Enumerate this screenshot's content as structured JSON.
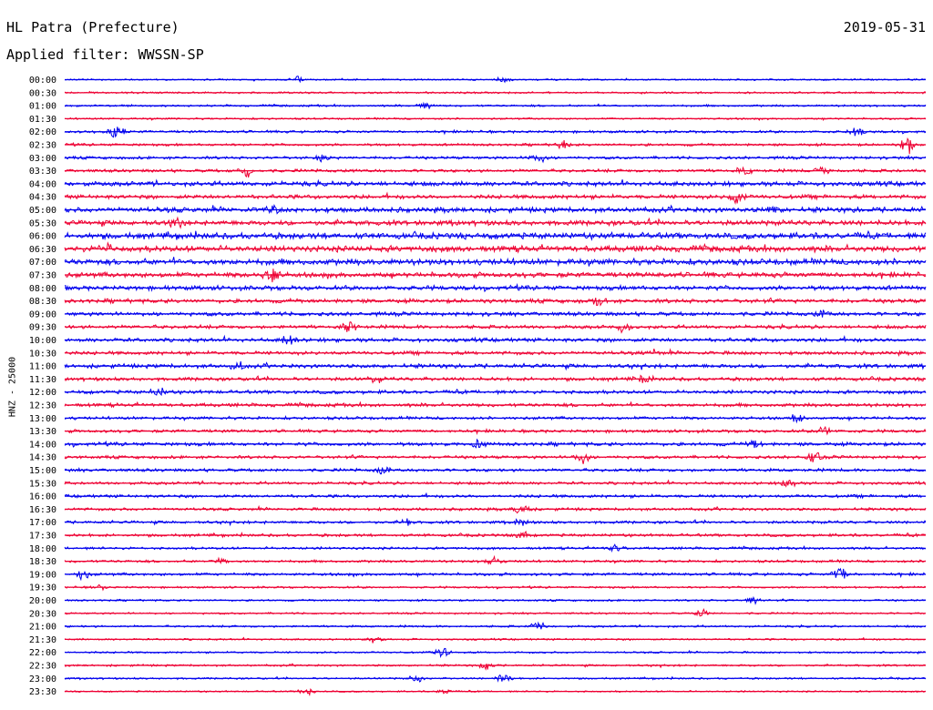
{
  "header": {
    "station": "HL Patra (Prefecture)",
    "filter": "Applied filter: WWSSN-SP",
    "date": "2019-05-31"
  },
  "chart_data": {
    "type": "line",
    "title": "HL Patra (Prefecture)",
    "subtitle": "Applied filter: WWSSN-SP",
    "date": "2019-05-31",
    "ylabel": "HNZ - 25000",
    "colors": [
      "#0000ee",
      "#ee0033"
    ],
    "rows": [
      {
        "label": "00:00",
        "amplitude": 0.15,
        "events": [
          [
            0.27,
            0.4
          ],
          [
            0.51,
            0.5
          ]
        ]
      },
      {
        "label": "00:30",
        "amplitude": 0.18,
        "events": []
      },
      {
        "label": "01:00",
        "amplitude": 0.2,
        "events": [
          [
            0.42,
            0.5
          ]
        ]
      },
      {
        "label": "01:30",
        "amplitude": 0.18,
        "events": []
      },
      {
        "label": "02:00",
        "amplitude": 0.25,
        "events": [
          [
            0.06,
            1.4
          ],
          [
            0.92,
            0.6
          ]
        ]
      },
      {
        "label": "02:30",
        "amplitude": 0.25,
        "events": [
          [
            0.98,
            1.3
          ],
          [
            0.58,
            0.6
          ]
        ]
      },
      {
        "label": "03:00",
        "amplitude": 0.28,
        "events": [
          [
            0.3,
            0.6
          ],
          [
            0.55,
            0.7
          ]
        ]
      },
      {
        "label": "03:30",
        "amplitude": 0.3,
        "events": [
          [
            0.21,
            0.7
          ],
          [
            0.79,
            0.6
          ],
          [
            0.88,
            0.6
          ]
        ]
      },
      {
        "label": "04:00",
        "amplitude": 0.45,
        "events": []
      },
      {
        "label": "04:30",
        "amplitude": 0.4,
        "events": [
          [
            0.78,
            1.0
          ]
        ]
      },
      {
        "label": "05:00",
        "amplitude": 0.5,
        "events": [
          [
            0.24,
            0.8
          ],
          [
            0.82,
            0.6
          ]
        ]
      },
      {
        "label": "05:30",
        "amplitude": 0.5,
        "events": [
          [
            0.13,
            0.6
          ]
        ]
      },
      {
        "label": "06:00",
        "amplitude": 0.6,
        "events": []
      },
      {
        "label": "06:30",
        "amplitude": 0.6,
        "events": [
          [
            0.05,
            0.7
          ]
        ]
      },
      {
        "label": "07:00",
        "amplitude": 0.6,
        "events": []
      },
      {
        "label": "07:30",
        "amplitude": 0.5,
        "events": [
          [
            0.24,
            1.1
          ]
        ]
      },
      {
        "label": "08:00",
        "amplitude": 0.45,
        "events": []
      },
      {
        "label": "08:30",
        "amplitude": 0.4,
        "events": [
          [
            0.62,
            0.6
          ]
        ]
      },
      {
        "label": "09:00",
        "amplitude": 0.38,
        "events": [
          [
            0.88,
            0.6
          ]
        ]
      },
      {
        "label": "09:30",
        "amplitude": 0.35,
        "events": [
          [
            0.33,
            0.8
          ],
          [
            0.65,
            0.9
          ]
        ]
      },
      {
        "label": "10:00",
        "amplitude": 0.38,
        "events": [
          [
            0.26,
            0.6
          ]
        ]
      },
      {
        "label": "10:30",
        "amplitude": 0.35,
        "events": [
          [
            0.68,
            0.6
          ]
        ]
      },
      {
        "label": "11:00",
        "amplitude": 0.4,
        "events": [
          [
            0.2,
            0.6
          ]
        ]
      },
      {
        "label": "11:30",
        "amplitude": 0.35,
        "events": [
          [
            0.36,
            0.6
          ],
          [
            0.67,
            0.6
          ]
        ]
      },
      {
        "label": "12:00",
        "amplitude": 0.35,
        "events": [
          [
            0.11,
            0.8
          ]
        ]
      },
      {
        "label": "12:30",
        "amplitude": 0.35,
        "events": []
      },
      {
        "label": "13:00",
        "amplitude": 0.3,
        "events": [
          [
            0.85,
            0.6
          ]
        ]
      },
      {
        "label": "13:30",
        "amplitude": 0.3,
        "events": [
          [
            0.88,
            0.7
          ]
        ]
      },
      {
        "label": "14:00",
        "amplitude": 0.35,
        "events": [
          [
            0.48,
            0.6
          ],
          [
            0.8,
            0.6
          ]
        ]
      },
      {
        "label": "14:30",
        "amplitude": 0.3,
        "events": [
          [
            0.6,
            0.9
          ],
          [
            0.87,
            0.8
          ]
        ]
      },
      {
        "label": "15:00",
        "amplitude": 0.3,
        "events": [
          [
            0.37,
            0.7
          ]
        ]
      },
      {
        "label": "15:30",
        "amplitude": 0.28,
        "events": [
          [
            0.84,
            0.6
          ]
        ]
      },
      {
        "label": "16:00",
        "amplitude": 0.3,
        "events": []
      },
      {
        "label": "16:30",
        "amplitude": 0.28,
        "events": [
          [
            0.53,
            0.6
          ]
        ]
      },
      {
        "label": "17:00",
        "amplitude": 0.28,
        "events": [
          [
            0.4,
            0.6
          ],
          [
            0.53,
            0.6
          ]
        ]
      },
      {
        "label": "17:30",
        "amplitude": 0.28,
        "events": [
          [
            0.53,
            0.6
          ]
        ]
      },
      {
        "label": "18:00",
        "amplitude": 0.25,
        "events": [
          [
            0.64,
            0.5
          ]
        ]
      },
      {
        "label": "18:30",
        "amplitude": 0.25,
        "events": [
          [
            0.18,
            0.5
          ],
          [
            0.5,
            0.5
          ]
        ]
      },
      {
        "label": "19:00",
        "amplitude": 0.28,
        "events": [
          [
            0.02,
            0.7
          ],
          [
            0.9,
            1.1
          ]
        ]
      },
      {
        "label": "19:30",
        "amplitude": 0.2,
        "events": [
          [
            0.04,
            0.4
          ]
        ]
      },
      {
        "label": "20:00",
        "amplitude": 0.18,
        "events": [
          [
            0.8,
            0.6
          ]
        ]
      },
      {
        "label": "20:30",
        "amplitude": 0.18,
        "events": [
          [
            0.74,
            0.5
          ]
        ]
      },
      {
        "label": "21:00",
        "amplitude": 0.2,
        "events": [
          [
            0.55,
            0.6
          ]
        ]
      },
      {
        "label": "21:30",
        "amplitude": 0.18,
        "events": [
          [
            0.36,
            0.5
          ]
        ]
      },
      {
        "label": "22:00",
        "amplitude": 0.18,
        "events": [
          [
            0.44,
            0.7
          ]
        ]
      },
      {
        "label": "22:30",
        "amplitude": 0.2,
        "events": [
          [
            0.49,
            0.5
          ]
        ]
      },
      {
        "label": "23:00",
        "amplitude": 0.18,
        "events": [
          [
            0.41,
            0.7
          ],
          [
            0.51,
            0.6
          ]
        ]
      },
      {
        "label": "23:30",
        "amplitude": 0.15,
        "events": [
          [
            0.28,
            0.8
          ],
          [
            0.44,
            0.4
          ]
        ]
      }
    ]
  }
}
